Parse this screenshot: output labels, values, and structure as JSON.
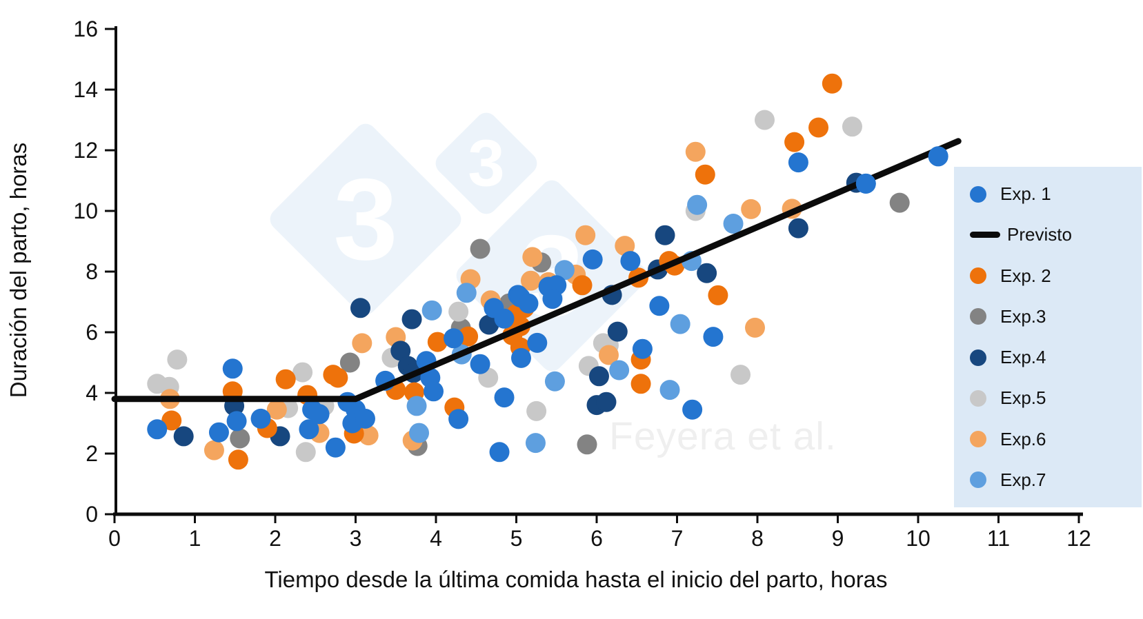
{
  "chart_data": {
    "type": "scatter",
    "title": "",
    "xlabel": "Tiempo desde la última comida hasta el inicio del parto, horas",
    "ylabel": "Duración del parto, horas",
    "xlim": [
      0,
      12
    ],
    "ylim": [
      0,
      16
    ],
    "xticks": [
      0,
      1,
      2,
      3,
      4,
      5,
      6,
      7,
      8,
      9,
      10,
      11,
      12
    ],
    "yticks": [
      0,
      2,
      4,
      6,
      8,
      10,
      12,
      14,
      16
    ],
    "grid": false,
    "legend_position": "right",
    "series": [
      {
        "name": "Exp. 1",
        "color": "#2475d0",
        "points": [
          [
            0.53,
            2.8
          ],
          [
            1.3,
            2.7
          ],
          [
            1.47,
            4.8
          ],
          [
            1.52,
            3.07
          ],
          [
            1.82,
            3.15
          ],
          [
            2.42,
            2.8
          ],
          [
            2.46,
            3.45
          ],
          [
            2.55,
            3.3
          ],
          [
            2.75,
            2.2
          ],
          [
            2.9,
            3.7
          ],
          [
            3.0,
            3.45
          ],
          [
            2.96,
            3.0
          ],
          [
            3.12,
            3.15
          ],
          [
            3.37,
            4.4
          ],
          [
            3.88,
            5.05
          ],
          [
            3.93,
            4.5
          ],
          [
            3.97,
            4.05
          ],
          [
            4.22,
            5.8
          ],
          [
            4.28,
            3.14
          ],
          [
            4.55,
            4.95
          ],
          [
            4.72,
            6.8
          ],
          [
            4.79,
            2.05
          ],
          [
            4.85,
            3.85
          ],
          [
            4.85,
            6.45
          ],
          [
            5.02,
            7.23
          ],
          [
            5.05,
            7.15
          ],
          [
            5.15,
            6.95
          ],
          [
            5.06,
            5.15
          ],
          [
            5.26,
            5.65
          ],
          [
            5.4,
            7.5
          ],
          [
            5.5,
            7.55
          ],
          [
            5.45,
            7.1
          ],
          [
            5.95,
            8.4
          ],
          [
            6.42,
            8.35
          ],
          [
            6.57,
            5.45
          ],
          [
            6.78,
            6.87
          ],
          [
            7.19,
            3.45
          ],
          [
            7.45,
            5.85
          ],
          [
            8.51,
            11.6
          ],
          [
            9.35,
            10.9
          ],
          [
            10.25,
            11.8
          ]
        ]
      },
      {
        "name": "Exp. 2",
        "color": "#ee720b",
        "points": [
          [
            0.71,
            3.09
          ],
          [
            1.47,
            4.05
          ],
          [
            1.54,
            1.8
          ],
          [
            1.9,
            2.84
          ],
          [
            2.13,
            4.45
          ],
          [
            2.4,
            3.93
          ],
          [
            2.72,
            4.6
          ],
          [
            2.78,
            4.5
          ],
          [
            2.98,
            2.66
          ],
          [
            3.5,
            4.1
          ],
          [
            3.73,
            4.02
          ],
          [
            4.02,
            5.68
          ],
          [
            4.23,
            3.52
          ],
          [
            4.4,
            5.86
          ],
          [
            4.95,
            5.9
          ],
          [
            5.05,
            6.2
          ],
          [
            5.05,
            5.5
          ],
          [
            5.0,
            6.6
          ],
          [
            5.1,
            6.8
          ],
          [
            5.82,
            7.55
          ],
          [
            6.52,
            7.8
          ],
          [
            6.9,
            8.35
          ],
          [
            6.97,
            8.2
          ],
          [
            6.55,
            5.1
          ],
          [
            6.55,
            4.3
          ],
          [
            7.35,
            11.2
          ],
          [
            7.51,
            7.22
          ],
          [
            8.46,
            12.27
          ],
          [
            8.76,
            12.75
          ],
          [
            8.93,
            14.2
          ]
        ]
      },
      {
        "name": "Exp.3",
        "color": "#838383",
        "points": [
          [
            1.56,
            2.5
          ],
          [
            2.93,
            5.0
          ],
          [
            3.77,
            2.25
          ],
          [
            4.31,
            6.14
          ],
          [
            4.55,
            8.75
          ],
          [
            4.91,
            6.95
          ],
          [
            5.31,
            8.3
          ],
          [
            5.88,
            2.3
          ],
          [
            9.77,
            10.27
          ]
        ]
      },
      {
        "name": "Exp.4",
        "color": "#17477f",
        "points": [
          [
            0.86,
            2.57
          ],
          [
            1.49,
            3.57
          ],
          [
            2.06,
            2.57
          ],
          [
            3.06,
            6.8
          ],
          [
            3.56,
            5.39
          ],
          [
            3.65,
            4.89
          ],
          [
            3.72,
            4.66
          ],
          [
            3.7,
            6.43
          ],
          [
            4.66,
            6.25
          ],
          [
            6.0,
            3.6
          ],
          [
            6.12,
            3.7
          ],
          [
            6.03,
            4.55
          ],
          [
            6.19,
            7.23
          ],
          [
            6.26,
            6.02
          ],
          [
            6.76,
            8.07
          ],
          [
            6.85,
            9.2
          ],
          [
            7.37,
            7.95
          ],
          [
            8.51,
            9.43
          ],
          [
            9.23,
            10.93
          ]
        ]
      },
      {
        "name": "Exp.5",
        "color": "#c8c8c8",
        "points": [
          [
            0.53,
            4.3
          ],
          [
            0.68,
            4.2
          ],
          [
            0.78,
            5.1
          ],
          [
            2.16,
            3.5
          ],
          [
            2.34,
            4.68
          ],
          [
            2.38,
            2.05
          ],
          [
            2.61,
            3.57
          ],
          [
            3.45,
            5.16
          ],
          [
            4.28,
            6.68
          ],
          [
            4.65,
            4.5
          ],
          [
            5.25,
            3.4
          ],
          [
            5.9,
            4.89
          ],
          [
            6.08,
            5.64
          ],
          [
            6.15,
            5.57
          ],
          [
            7.23,
            10.0
          ],
          [
            7.79,
            4.6
          ],
          [
            8.09,
            13.0
          ],
          [
            9.18,
            12.78
          ]
        ]
      },
      {
        "name": "Exp.6",
        "color": "#f4a55e",
        "points": [
          [
            0.69,
            3.8
          ],
          [
            1.24,
            2.11
          ],
          [
            2.02,
            3.45
          ],
          [
            2.55,
            2.68
          ],
          [
            3.08,
            5.64
          ],
          [
            3.16,
            2.6
          ],
          [
            3.5,
            5.84
          ],
          [
            3.71,
            2.43
          ],
          [
            4.43,
            7.75
          ],
          [
            4.68,
            7.05
          ],
          [
            5.2,
            8.48
          ],
          [
            5.18,
            7.7
          ],
          [
            5.4,
            7.65
          ],
          [
            5.74,
            7.9
          ],
          [
            5.86,
            9.2
          ],
          [
            6.15,
            5.25
          ],
          [
            6.35,
            8.85
          ],
          [
            7.23,
            11.95
          ],
          [
            7.92,
            10.06
          ],
          [
            8.43,
            10.07
          ],
          [
            7.97,
            6.15
          ]
        ]
      },
      {
        "name": "Exp.7",
        "color": "#5e9fdf",
        "points": [
          [
            3.76,
            3.57
          ],
          [
            3.79,
            2.68
          ],
          [
            3.95,
            6.72
          ],
          [
            4.32,
            5.27
          ],
          [
            4.38,
            7.3
          ],
          [
            5.24,
            2.35
          ],
          [
            5.48,
            4.38
          ],
          [
            5.6,
            8.05
          ],
          [
            6.28,
            4.75
          ],
          [
            6.91,
            4.1
          ],
          [
            7.04,
            6.27
          ],
          [
            7.18,
            8.35
          ],
          [
            7.25,
            10.2
          ],
          [
            7.7,
            9.58
          ]
        ]
      }
    ],
    "trend_line": {
      "name": "Previsto",
      "color": "#0b0b0b",
      "points": [
        [
          0,
          3.8
        ],
        [
          3,
          3.8
        ],
        [
          10.5,
          12.3
        ]
      ]
    }
  },
  "legend": {
    "items": [
      {
        "label": "Exp. 1",
        "type": "marker",
        "color": "#2475d0"
      },
      {
        "label": "Previsto",
        "type": "line",
        "color": "#0b0b0b"
      },
      {
        "label": "Exp. 2",
        "type": "marker",
        "color": "#ee720b"
      },
      {
        "label": "Exp.3",
        "type": "marker",
        "color": "#838383"
      },
      {
        "label": "Exp.4",
        "type": "marker",
        "color": "#17477f"
      },
      {
        "label": "Exp.5",
        "type": "marker",
        "color": "#c8c8c8"
      },
      {
        "label": "Exp.6",
        "type": "marker",
        "color": "#f4a55e"
      },
      {
        "label": "Exp.7",
        "type": "marker",
        "color": "#5e9fdf"
      }
    ]
  },
  "watermark": {
    "glyph": "3",
    "attribution": "Feyera et al.",
    "diamond_color": "#ecf3fa"
  }
}
